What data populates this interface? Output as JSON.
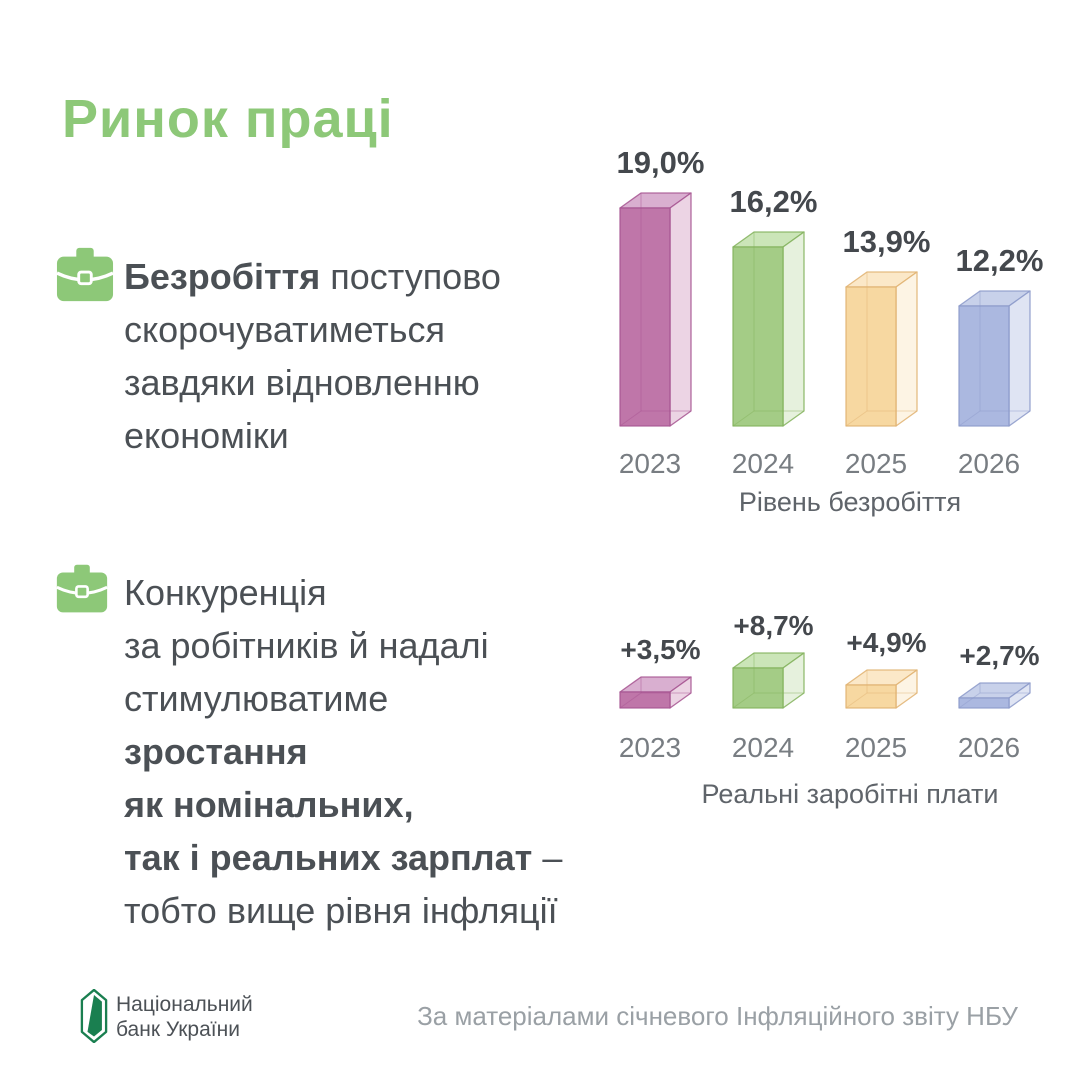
{
  "page": {
    "background": "#ffffff",
    "accent_green": "#8DC878",
    "text_dark": "#4b5055",
    "text_gray": "#787d82",
    "logo_green": "#1a7f50"
  },
  "title": "Ринок праці",
  "blocks": [
    {
      "icon": "briefcase-icon",
      "lines": [
        {
          "bold": "Безробіття",
          "regular": " поступово"
        },
        {
          "regular": "скорочуватиметься"
        },
        {
          "regular": "завдяки відновленню"
        },
        {
          "regular": "економіки"
        }
      ]
    },
    {
      "icon": "briefcase-icon",
      "lines": [
        {
          "regular": "Конкуренція"
        },
        {
          "regular": "за робітників й надалі"
        },
        {
          "regular": "стимулюватиме"
        },
        {
          "bold": "зростання"
        },
        {
          "bold": "як номінальних,"
        },
        {
          "bold": "так і реальних зарплат",
          "regular": " –"
        },
        {
          "regular": "тобто вище рівня інфляції"
        }
      ]
    }
  ],
  "palette": [
    {
      "name": "pink",
      "front": "#bf76a9",
      "side": "#ecd4e4",
      "top": "#d9afd0",
      "edge": "#a65390"
    },
    {
      "name": "green",
      "front": "#a4cc86",
      "side": "#e6f1dd",
      "top": "#cbe5b8",
      "edge": "#82b15c"
    },
    {
      "name": "yellow",
      "front": "#f7d8a1",
      "side": "#fdf4e4",
      "top": "#fbe8c8",
      "edge": "#e0b270"
    },
    {
      "name": "blue",
      "front": "#abb8e0",
      "side": "#dfe4f3",
      "top": "#c8d1ea",
      "edge": "#8b99c9"
    }
  ],
  "chart_data": [
    {
      "type": "bar",
      "style": "3d-translucent-box",
      "title": "Рівень безробіття",
      "categories": [
        "2023",
        "2024",
        "2025",
        "2026"
      ],
      "values": [
        19.0,
        16.2,
        13.9,
        12.2
      ],
      "value_labels": [
        "19,0%",
        "16,2%",
        "13,9%",
        "12,2%"
      ],
      "unit": "%",
      "xlabel": "",
      "ylabel": "",
      "ylim": [
        0,
        19
      ],
      "grid": false,
      "legend": false
    },
    {
      "type": "bar",
      "style": "3d-translucent-box",
      "title": "Реальні заробітні плати",
      "categories": [
        "2023",
        "2024",
        "2025",
        "2026"
      ],
      "values": [
        3.5,
        8.7,
        4.9,
        2.7
      ],
      "value_labels": [
        "+3,5%",
        "+8,7%",
        "+4,9%",
        "+2,7%"
      ],
      "unit": "%",
      "xlabel": "",
      "ylabel": "",
      "ylim": [
        0,
        8.7
      ],
      "grid": false,
      "legend": false
    }
  ],
  "footer": {
    "logo_line1": "Національний",
    "logo_line2": "банк України",
    "source": "За матеріалами січневого Інфляційного звіту НБУ"
  }
}
